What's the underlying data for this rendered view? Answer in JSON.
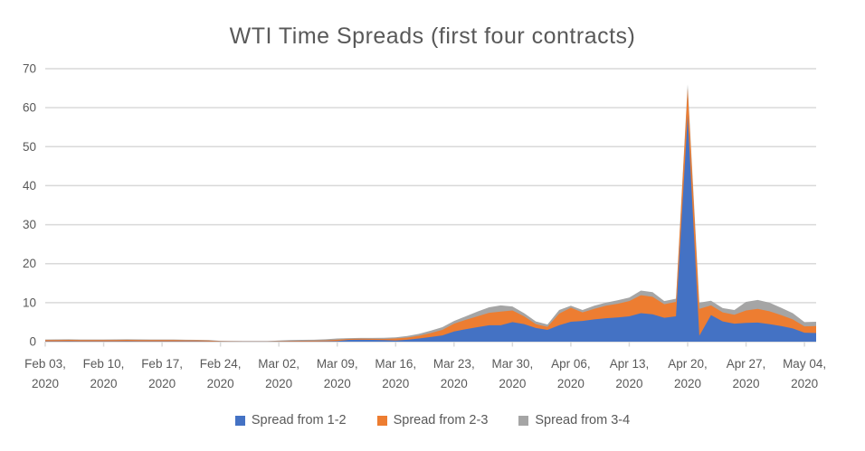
{
  "chart_data": {
    "type": "area",
    "stacked": true,
    "title": "WTI Time Spreads (first four contracts)",
    "xlabel": "",
    "ylabel": "",
    "ylim": [
      0,
      70
    ],
    "y_ticks": [
      0,
      10,
      20,
      30,
      40,
      50,
      60,
      70
    ],
    "grid": "horizontal",
    "legend_position": "bottom",
    "x_tick_year": "2020",
    "x_tick_labels": [
      "Feb 03,",
      "Feb 10,",
      "Feb 17,",
      "Feb 24,",
      "Mar 02,",
      "Mar 09,",
      "Mar 16,",
      "Mar 23,",
      "Mar 30,",
      "Apr 06,",
      "Apr 13,",
      "Apr 20,",
      "Apr 27,",
      "May 04,"
    ],
    "x_tick_every": 5,
    "x": [
      "Feb 03",
      "Feb 04",
      "Feb 05",
      "Feb 06",
      "Feb 07",
      "Feb 10",
      "Feb 11",
      "Feb 12",
      "Feb 13",
      "Feb 14",
      "Feb 17",
      "Feb 18",
      "Feb 19",
      "Feb 20",
      "Feb 21",
      "Feb 24",
      "Feb 25",
      "Feb 26",
      "Feb 27",
      "Feb 28",
      "Mar 02",
      "Mar 03",
      "Mar 04",
      "Mar 05",
      "Mar 06",
      "Mar 09",
      "Mar 10",
      "Mar 11",
      "Mar 12",
      "Mar 13",
      "Mar 16",
      "Mar 17",
      "Mar 18",
      "Mar 19",
      "Mar 20",
      "Mar 23",
      "Mar 24",
      "Mar 25",
      "Mar 26",
      "Mar 27",
      "Mar 30",
      "Mar 31",
      "Apr 01",
      "Apr 02",
      "Apr 03",
      "Apr 06",
      "Apr 07",
      "Apr 08",
      "Apr 09",
      "Apr 10",
      "Apr 13",
      "Apr 14",
      "Apr 15",
      "Apr 16",
      "Apr 17",
      "Apr 20",
      "Apr 21",
      "Apr 22",
      "Apr 23",
      "Apr 24",
      "Apr 27",
      "Apr 28",
      "Apr 29",
      "Apr 30",
      "May 01",
      "May 04",
      "May 05"
    ],
    "series": [
      {
        "name": "Spread from 1-2",
        "color": "#4472C4",
        "values": [
          0.1,
          0.1,
          0.12,
          0.1,
          0.1,
          0.1,
          0.1,
          0.12,
          0.1,
          0.1,
          0.1,
          0.1,
          0.08,
          0.08,
          0.06,
          0.03,
          0.02,
          0.02,
          0.02,
          0.02,
          0.03,
          0.05,
          0.05,
          0.06,
          0.08,
          0.15,
          0.45,
          0.5,
          0.45,
          0.4,
          0.3,
          0.5,
          0.8,
          1.2,
          1.6,
          2.6,
          3.2,
          3.7,
          4.2,
          4.2,
          5.0,
          4.5,
          3.5,
          3.0,
          4.2,
          5.1,
          5.3,
          5.7,
          6.0,
          6.2,
          6.5,
          7.3,
          7.0,
          6.1,
          6.5,
          57.9,
          1.5,
          6.8,
          5.2,
          4.6,
          4.8,
          4.9,
          4.5,
          4.0,
          3.4,
          2.3,
          2.2
        ]
      },
      {
        "name": "Spread from 2-3",
        "color": "#ED7D31",
        "values": [
          0.3,
          0.32,
          0.33,
          0.3,
          0.3,
          0.3,
          0.32,
          0.34,
          0.32,
          0.3,
          0.3,
          0.3,
          0.28,
          0.26,
          0.22,
          0.1,
          0.06,
          0.05,
          0.04,
          0.04,
          0.1,
          0.15,
          0.18,
          0.2,
          0.25,
          0.35,
          0.25,
          0.25,
          0.28,
          0.3,
          0.5,
          0.55,
          0.7,
          1.0,
          1.4,
          2.0,
          2.4,
          2.8,
          3.2,
          3.5,
          3.0,
          2.0,
          1.0,
          0.8,
          3.0,
          3.6,
          2.2,
          2.7,
          3.2,
          3.5,
          3.9,
          4.6,
          4.5,
          3.5,
          3.7,
          7.0,
          6.9,
          2.5,
          2.3,
          2.3,
          3.2,
          3.5,
          3.3,
          2.8,
          2.3,
          1.6,
          1.8
        ]
      },
      {
        "name": "Spread from 3-4",
        "color": "#A5A5A5",
        "values": [
          0.15,
          0.15,
          0.15,
          0.15,
          0.15,
          0.15,
          0.16,
          0.16,
          0.15,
          0.15,
          0.15,
          0.14,
          0.14,
          0.12,
          0.12,
          0.08,
          0.06,
          0.05,
          0.05,
          0.05,
          0.15,
          0.2,
          0.22,
          0.24,
          0.28,
          0.3,
          0.2,
          0.2,
          0.22,
          0.3,
          0.3,
          0.4,
          0.5,
          0.6,
          0.7,
          0.7,
          0.9,
          1.2,
          1.4,
          1.6,
          1.0,
          0.8,
          0.7,
          0.6,
          0.9,
          0.5,
          0.6,
          0.8,
          0.8,
          0.9,
          0.9,
          1.2,
          1.2,
          0.8,
          0.8,
          1.1,
          1.6,
          1.2,
          1.1,
          1.2,
          2.2,
          2.3,
          2.2,
          1.9,
          1.6,
          1.1,
          1.1
        ]
      }
    ]
  },
  "colors": {
    "text": "#595959",
    "grid": "#D9D9D9",
    "background": "#FFFFFF"
  }
}
